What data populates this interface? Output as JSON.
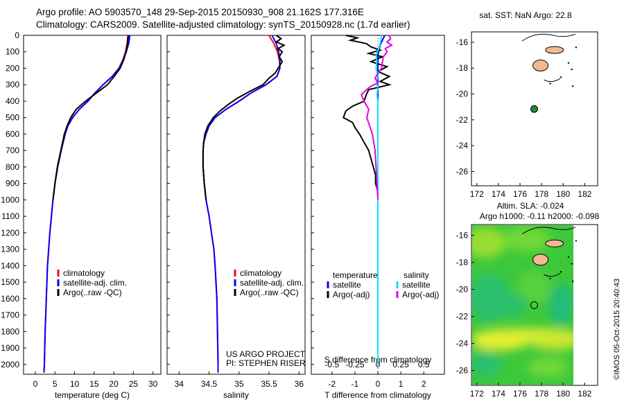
{
  "header": {
    "line1": "Argo profile: AO 5903570_148 29-Sep-2015 20150930_908 21.162S 177.316E",
    "line2": "Climatology: CARS2009. Satellite-adjusted climatology: synTS_20150928.nc (1.7d earlier)"
  },
  "colors": {
    "climatology": "#ff0000",
    "satellite": "#0000ff",
    "argo": "#000000",
    "sal_satellite": "#00e5ff",
    "sal_argo": "#e000e0",
    "land": "#f2b894",
    "argo_marker": "#1a8c3a"
  },
  "depth_axis": {
    "ticks": [
      0,
      100,
      200,
      300,
      400,
      500,
      600,
      700,
      800,
      900,
      1000,
      1100,
      1200,
      1300,
      1400,
      1500,
      1600,
      1700,
      1800,
      1900,
      2000
    ],
    "range": [
      0,
      2060
    ],
    "direction": "increasing downward"
  },
  "chart_data": [
    {
      "type": "line",
      "panel": "temperature",
      "xlabel": "temperature (deg C)",
      "xticks": [
        "0",
        "5",
        "10",
        "15",
        "20",
        "25",
        "30"
      ],
      "xlim": [
        -3,
        32
      ],
      "legend": [
        "climatology",
        "satellite-adj. clim.",
        "Argo(..raw -QC)"
      ],
      "series": [
        {
          "name": "climatology",
          "color": "#ff0000",
          "depth": [
            0,
            50,
            100,
            150,
            200,
            250,
            300,
            350,
            400,
            450,
            500,
            550,
            600,
            700,
            800,
            900,
            1000,
            1200,
            1400,
            1600,
            1800,
            2000,
            2050
          ],
          "values": [
            23.6,
            23.4,
            23.0,
            22.3,
            21.3,
            19.6,
            17.3,
            15.2,
            13.4,
            11.2,
            9.5,
            8.3,
            7.6,
            6.6,
            5.7,
            5.0,
            4.5,
            3.7,
            3.1,
            2.8,
            2.5,
            2.3,
            2.2
          ]
        },
        {
          "name": "satellite-adj. clim.",
          "color": "#0000ff",
          "depth": [
            0,
            50,
            100,
            150,
            200,
            250,
            300,
            350,
            400,
            450,
            500,
            550,
            600,
            700,
            800,
            900,
            1000,
            1200,
            1400,
            1600,
            1800,
            2000,
            2050
          ],
          "values": [
            24.1,
            23.8,
            23.2,
            22.4,
            21.3,
            19.6,
            17.3,
            15.2,
            13.4,
            11.2,
            9.5,
            8.3,
            7.6,
            6.6,
            5.7,
            5.0,
            4.5,
            3.7,
            3.1,
            2.8,
            2.5,
            2.3,
            2.2
          ]
        },
        {
          "name": "Argo(..raw -QC)",
          "color": "#000000",
          "depth": [
            0,
            50,
            100,
            150,
            200,
            250,
            300,
            350,
            400,
            450,
            500,
            550,
            600,
            700,
            800,
            900,
            1000
          ],
          "values": [
            23.7,
            23.5,
            23.1,
            22.5,
            21.6,
            20.1,
            18.4,
            15.6,
            12.8,
            10.4,
            9.0,
            8.1,
            7.4,
            6.5,
            5.6,
            5.0,
            4.5
          ]
        }
      ]
    },
    {
      "type": "line",
      "panel": "salinity",
      "xlabel": "salinity",
      "xticks": [
        "34",
        "34.5",
        "35",
        "35.5",
        "36"
      ],
      "xlim": [
        33.8,
        36.1
      ],
      "legend": [
        "climatology",
        "satellite-adj. clim.",
        "Argo(..raw -QC)"
      ],
      "annotation": [
        "US ARGO PROJECT",
        "PI: STEPHEN RISER"
      ],
      "series": [
        {
          "name": "climatology",
          "color": "#ff0000",
          "depth": [
            0,
            50,
            100,
            150,
            200,
            250,
            300,
            350,
            400,
            450,
            500,
            550,
            600,
            650,
            700,
            800,
            900,
            1000,
            1100,
            1200,
            1300,
            1400,
            1600,
            1800,
            2000,
            2050
          ],
          "values": [
            35.5,
            35.58,
            35.64,
            35.67,
            35.68,
            35.63,
            35.45,
            35.2,
            35.0,
            34.78,
            34.6,
            34.5,
            34.45,
            34.41,
            34.4,
            34.4,
            34.42,
            34.45,
            34.5,
            34.54,
            34.58,
            34.6,
            34.63,
            34.64,
            34.65,
            34.65
          ]
        },
        {
          "name": "satellite-adj. clim.",
          "color": "#0000ff",
          "depth": [
            0,
            50,
            100,
            150,
            200,
            250,
            300,
            350,
            400,
            450,
            500,
            550,
            600,
            650,
            700,
            800,
            900,
            1000,
            1100,
            1200,
            1300,
            1400,
            1600,
            1800,
            2000,
            2050
          ],
          "values": [
            35.55,
            35.62,
            35.66,
            35.68,
            35.68,
            35.63,
            35.45,
            35.2,
            35.0,
            34.78,
            34.6,
            34.5,
            34.45,
            34.41,
            34.4,
            34.4,
            34.42,
            34.45,
            34.5,
            34.54,
            34.58,
            34.6,
            34.63,
            34.64,
            34.65,
            34.65
          ]
        },
        {
          "name": "Argo(..raw -QC)",
          "color": "#000000",
          "depth": [
            0,
            20,
            40,
            60,
            80,
            100,
            130,
            160,
            200,
            230,
            260,
            300,
            340,
            380,
            420,
            460,
            500,
            550,
            600,
            650,
            700,
            800,
            900,
            1000
          ],
          "values": [
            35.62,
            35.7,
            35.62,
            35.75,
            35.65,
            35.72,
            35.67,
            35.72,
            35.65,
            35.6,
            35.5,
            35.4,
            35.18,
            34.98,
            34.82,
            34.68,
            34.57,
            34.48,
            34.43,
            34.41,
            34.4,
            34.4,
            34.42,
            34.45
          ]
        }
      ]
    },
    {
      "type": "line",
      "panel": "difference",
      "xlabel": "T difference from climatology",
      "xlabel_top": "S difference from climatology",
      "xticks": [
        "-2",
        "-1",
        "0",
        "1",
        "2"
      ],
      "xticks_top": [
        "-0.5",
        "-0.25",
        "0",
        "0.25",
        "0.5"
      ],
      "xlim": [
        -2.9,
        2.9
      ],
      "legend_temperature": [
        "temperature",
        "satellite",
        "Argo(-adj)"
      ],
      "legend_salinity": [
        "salinity",
        "satellite",
        "Argo(-adj)"
      ],
      "series": [
        {
          "name": "temperature satellite",
          "color": "#0000ff",
          "depth": [
            0,
            30,
            60,
            90,
            120,
            200,
            400,
            1000,
            2000
          ],
          "values": [
            0.3,
            0.2,
            0.1,
            0.05,
            0,
            0,
            0,
            0,
            0
          ]
        },
        {
          "name": "temperature Argo(-adj)",
          "color": "#000000",
          "depth": [
            0,
            15,
            30,
            50,
            70,
            90,
            110,
            130,
            160,
            190,
            220,
            250,
            280,
            300,
            330,
            360,
            400,
            430,
            460,
            500,
            530,
            560,
            600,
            650,
            700,
            750,
            800,
            850,
            900,
            950,
            1000
          ],
          "values": [
            -1.4,
            -0.9,
            -1.2,
            -0.5,
            -0.3,
            0.1,
            -0.4,
            0.2,
            -0.3,
            0.4,
            0.0,
            0.5,
            0.1,
            0.5,
            -0.4,
            -0.5,
            -0.6,
            -1.1,
            -1.4,
            -1.5,
            -1.1,
            -1.0,
            -0.8,
            -0.6,
            -0.4,
            -0.3,
            -0.2,
            -0.1,
            -0.1,
            0.0,
            0.0
          ]
        },
        {
          "name": "salinity satellite",
          "color": "#00e5ff",
          "depth": [
            0,
            40,
            80,
            120,
            160,
            200,
            240,
            280,
            320,
            360,
            400,
            1000,
            2000
          ],
          "values": [
            0.04,
            0.03,
            0.01,
            -0.02,
            -0.01,
            -0.02,
            0.0,
            -0.01,
            0.0,
            -0.01,
            0.0,
            0.0,
            0.0
          ]
        },
        {
          "name": "salinity Argo(-adj)",
          "color": "#e000e0",
          "depth": [
            0,
            20,
            40,
            60,
            80,
            100,
            130,
            160,
            200,
            230,
            260,
            290,
            310,
            330,
            360,
            400,
            450,
            500,
            550,
            600,
            700,
            800,
            900,
            1000
          ],
          "values": [
            0.12,
            0.14,
            0.1,
            0.15,
            0.08,
            0.1,
            0.06,
            0.05,
            0.04,
            0.0,
            -0.03,
            0.0,
            -0.08,
            -0.12,
            -0.18,
            -0.15,
            -0.1,
            -0.12,
            -0.09,
            -0.06,
            -0.03,
            -0.02,
            -0.01,
            0.0
          ]
        }
      ]
    }
  ],
  "map_top": {
    "title": "sat. SST: NaN Argo: 22.8",
    "xticks": [
      "172",
      "174",
      "176",
      "178",
      "180",
      "182"
    ],
    "yticks": [
      "-16",
      "-18",
      "-20",
      "-22",
      "-24",
      "-26"
    ],
    "lon_range": [
      171.5,
      183.2
    ],
    "lat_range": [
      -15.2,
      -27.1
    ],
    "argo_position": {
      "lon": 177.316,
      "lat": -21.162
    }
  },
  "map_bottom": {
    "title_line1": "Altim. SLA: -0.024",
    "title_line2": "Argo h1000: -0.11 h2000: -0.098",
    "xticks": [
      "172",
      "174",
      "176",
      "178",
      "180",
      "182"
    ],
    "yticks": [
      "-16",
      "-18",
      "-20",
      "-22",
      "-24",
      "-26"
    ],
    "lon_range": [
      171.5,
      183.2
    ],
    "lat_range": [
      -15.2,
      -27.1
    ],
    "argo_position": {
      "lon": 177.316,
      "lat": -21.162
    }
  },
  "credit": "©IMOS 05-Oct-2015 20:40:43"
}
